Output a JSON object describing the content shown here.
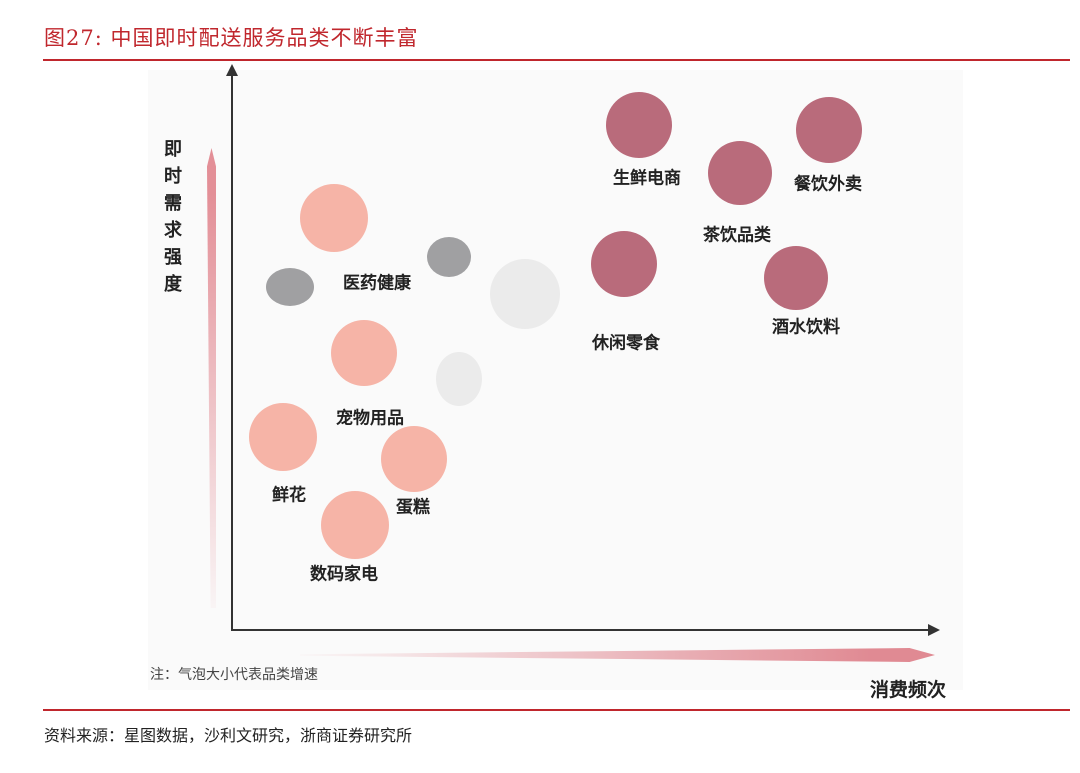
{
  "title": "图27:  中国即时配送服务品类不断丰富",
  "y_axis_label": "即时需求强度",
  "x_axis_label": "消费频次",
  "note": "注：气泡大小代表品类增速",
  "source": "资料来源：星图数据，沙利文研究，浙商证券研究所",
  "colors": {
    "accent": "#c0272d",
    "high": "#b96b7b",
    "low": "#f6b4a7",
    "gray": "#a0a0a2",
    "light": "#ebebeb"
  },
  "bubbles": [
    {
      "label": "生鲜电商",
      "group": "high"
    },
    {
      "label": "餐饮外卖",
      "group": "high"
    },
    {
      "label": "茶饮品类",
      "group": "high"
    },
    {
      "label": "休闲零食",
      "group": "high"
    },
    {
      "label": "酒水饮料",
      "group": "high"
    },
    {
      "label": "医药健康",
      "group": "low"
    },
    {
      "label": "宠物用品",
      "group": "low"
    },
    {
      "label": "鲜花",
      "group": "low"
    },
    {
      "label": "蛋糕",
      "group": "low"
    },
    {
      "label": "数码家电",
      "group": "low"
    },
    {
      "label": "",
      "group": "gray"
    },
    {
      "label": "",
      "group": "gray"
    },
    {
      "label": "",
      "group": "light"
    },
    {
      "label": "",
      "group": "light"
    }
  ]
}
